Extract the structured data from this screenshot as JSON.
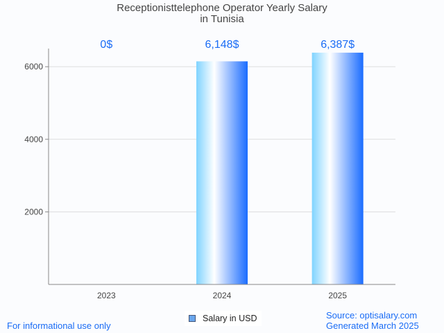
{
  "chart_data": {
    "type": "bar",
    "title": "Receptionisttelephone Operator Yearly Salary",
    "subtitle": "in Tunisia",
    "categories": [
      "2023",
      "2024",
      "2025"
    ],
    "values": [
      0,
      6148,
      6387
    ],
    "data_labels": [
      "0$",
      "6,148$",
      "6,387$"
    ],
    "yticks": [
      2000,
      4000,
      6000
    ],
    "ytick_labels": [
      "2000",
      "4000",
      "6000"
    ],
    "ylim": [
      0,
      6500
    ],
    "xlabel": "",
    "ylabel": "",
    "grid": true,
    "legend": {
      "label": "Salary in USD",
      "placement": "bottom-center"
    },
    "colors": {
      "bar_start": "#7fd3ff",
      "bar_mid": "#ffffff",
      "bar_end": "#1a6cff",
      "label": "#1a6cf5"
    }
  },
  "footer": {
    "left": "For informational use only",
    "source": "Source: optisalary.com",
    "generated": "Generated March 2025"
  }
}
